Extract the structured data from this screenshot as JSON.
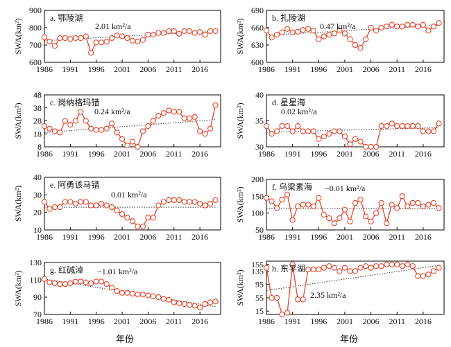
{
  "figure": {
    "x_axis_title": "年份",
    "line_color": "#e8452c",
    "trend_color": "#333333"
  },
  "chart_data": [
    {
      "type": "line",
      "panel_label": "a. 鄂陵湖",
      "trend_label": "2.01 km²/a",
      "ylabel": "SWA(km²)",
      "ylim": [
        600,
        900
      ],
      "yticks": [
        600,
        700,
        800,
        900
      ],
      "xlim": [
        1986,
        2020
      ],
      "xticks": [
        1986,
        1991,
        1996,
        2001,
        2006,
        2011,
        2016
      ],
      "trend": [
        [
          1986,
          725
        ],
        [
          2019,
          780
        ]
      ],
      "x": [
        1986,
        1987,
        1988,
        1989,
        1990,
        1991,
        1992,
        1993,
        1994,
        1995,
        1996,
        1997,
        1998,
        1999,
        2000,
        2001,
        2002,
        2003,
        2004,
        2005,
        2006,
        2007,
        2008,
        2009,
        2010,
        2011,
        2012,
        2013,
        2014,
        2015,
        2016,
        2017,
        2018,
        2019
      ],
      "values": [
        745,
        720,
        695,
        740,
        740,
        735,
        740,
        740,
        750,
        655,
        715,
        715,
        720,
        740,
        755,
        750,
        740,
        725,
        720,
        730,
        760,
        760,
        770,
        770,
        780,
        780,
        765,
        780,
        780,
        770,
        775,
        760,
        780,
        780
      ]
    },
    {
      "type": "line",
      "panel_label": "b. 扎陵湖",
      "trend_label": "0.47 km²/a",
      "ylabel": "SWA(km²)",
      "ylim": [
        600,
        690
      ],
      "yticks": [
        600,
        630,
        660,
        690
      ],
      "xlim": [
        1986,
        2020
      ],
      "xticks": [
        1986,
        1991,
        1996,
        2001,
        2006,
        2011,
        2016
      ],
      "trend": [
        [
          1986,
          647
        ],
        [
          2019,
          664
        ]
      ],
      "x": [
        1986,
        1987,
        1988,
        1989,
        1990,
        1991,
        1992,
        1993,
        1994,
        1995,
        1996,
        1997,
        1998,
        1999,
        2000,
        2001,
        2002,
        2003,
        2004,
        2005,
        2006,
        2007,
        2008,
        2009,
        2010,
        2011,
        2012,
        2013,
        2014,
        2015,
        2016,
        2017,
        2018,
        2019
      ],
      "values": [
        655,
        643,
        648,
        652,
        658,
        652,
        653,
        656,
        658,
        655,
        640,
        645,
        648,
        650,
        655,
        650,
        640,
        630,
        625,
        640,
        660,
        655,
        660,
        662,
        665,
        662,
        662,
        665,
        665,
        662,
        665,
        655,
        662,
        668
      ]
    },
    {
      "type": "line",
      "panel_label": "c. 岗纳格玛错",
      "trend_label": "0.24 km²/a",
      "ylabel": "SWA(km²)",
      "ylim": [
        8,
        48
      ],
      "yticks": [
        8,
        18,
        28,
        38,
        48
      ],
      "xlim": [
        1986,
        2020
      ],
      "xticks": [
        1986,
        1991,
        1996,
        2001,
        2006,
        2011,
        2016
      ],
      "trend": [
        [
          1986,
          19
        ],
        [
          2019,
          29
        ]
      ],
      "x": [
        1986,
        1987,
        1988,
        1989,
        1990,
        1991,
        1992,
        1993,
        1994,
        1995,
        1996,
        1997,
        1998,
        1999,
        2000,
        2001,
        2002,
        2003,
        2004,
        2005,
        2006,
        2007,
        2008,
        2009,
        2010,
        2011,
        2012,
        2013,
        2014,
        2015,
        2016,
        2017,
        2018,
        2019
      ],
      "values": [
        24,
        22,
        20,
        19,
        28,
        25,
        28,
        35,
        28,
        22,
        21,
        21,
        22,
        26,
        19,
        14,
        9,
        12,
        8,
        20,
        24,
        28,
        32,
        34,
        36,
        35,
        35,
        30,
        30,
        31,
        20,
        18,
        22,
        40
      ]
    },
    {
      "type": "line",
      "panel_label": "d. 星星海",
      "trend_label": "0.02 km²/a",
      "ylabel": "SWA(km²)",
      "ylim": [
        30,
        40
      ],
      "yticks": [
        30,
        35,
        40
      ],
      "xlim": [
        1986,
        2020
      ],
      "xticks": [
        1986,
        1991,
        1996,
        2001,
        2006,
        2011,
        2016
      ],
      "trend": [
        [
          1986,
          32.8
        ],
        [
          2019,
          33.7
        ]
      ],
      "x": [
        1986,
        1987,
        1988,
        1989,
        1990,
        1991,
        1992,
        1993,
        1994,
        1995,
        1996,
        1997,
        1998,
        1999,
        2000,
        2001,
        2002,
        2003,
        2004,
        2005,
        2006,
        2007,
        2008,
        2009,
        2010,
        2011,
        2012,
        2013,
        2014,
        2015,
        2016,
        2017,
        2018,
        2019
      ],
      "values": [
        34,
        32.5,
        33,
        34,
        34,
        33,
        34,
        33,
        33,
        33,
        31.5,
        32,
        32.5,
        33,
        33,
        32,
        30.5,
        31.5,
        31,
        30,
        30,
        30,
        34,
        34,
        34.5,
        34,
        34,
        34,
        34,
        34,
        33,
        33,
        33,
        34.5
      ]
    },
    {
      "type": "line",
      "panel_label": "e. 阿勇该马错",
      "trend_label": "0.01 km²/a",
      "ylabel": "SWA(km²)",
      "ylim": [
        10,
        40
      ],
      "yticks": [
        10,
        20,
        30,
        40
      ],
      "xlim": [
        1986,
        2020
      ],
      "xticks": [
        1986,
        1991,
        1996,
        2001,
        2006,
        2011,
        2016
      ],
      "trend": [
        [
          1986,
          23
        ],
        [
          2019,
          23
        ]
      ],
      "x": [
        1986,
        1987,
        1988,
        1989,
        1990,
        1991,
        1992,
        1993,
        1994,
        1995,
        1996,
        1997,
        1998,
        1999,
        2000,
        2001,
        2002,
        2003,
        2004,
        2005,
        2006,
        2007,
        2008,
        2009,
        2010,
        2011,
        2012,
        2013,
        2014,
        2015,
        2016,
        2017,
        2018,
        2019
      ],
      "values": [
        26,
        22,
        23,
        23,
        26,
        26,
        25,
        26,
        26,
        24,
        24,
        25,
        24,
        23,
        21,
        19,
        17,
        15,
        12,
        12,
        17,
        17,
        24,
        26,
        27,
        27,
        27,
        26,
        26,
        26,
        25,
        24,
        25,
        27
      ]
    },
    {
      "type": "line",
      "panel_label": "f. 乌梁素海",
      "trend_label": "−0.01 km²/a",
      "ylabel": "SWA(km²)",
      "ylim": [
        50,
        200
      ],
      "yticks": [
        50,
        100,
        150,
        200
      ],
      "xlim": [
        1986,
        2020
      ],
      "xticks": [
        1986,
        1991,
        1996,
        2001,
        2006,
        2011,
        2016
      ],
      "trend": [
        [
          1986,
          114
        ],
        [
          2019,
          113
        ]
      ],
      "x": [
        1986,
        1987,
        1988,
        1989,
        1990,
        1991,
        1992,
        1993,
        1994,
        1995,
        1996,
        1997,
        1998,
        1999,
        2000,
        2001,
        2002,
        2003,
        2004,
        2005,
        2006,
        2007,
        2008,
        2009,
        2010,
        2011,
        2012,
        2013,
        2014,
        2015,
        2016,
        2017,
        2018,
        2019
      ],
      "values": [
        145,
        135,
        115,
        140,
        155,
        80,
        120,
        125,
        125,
        120,
        145,
        95,
        85,
        70,
        85,
        110,
        75,
        130,
        140,
        90,
        75,
        100,
        130,
        70,
        125,
        115,
        150,
        120,
        130,
        130,
        120,
        125,
        130,
        115
      ]
    },
    {
      "type": "line",
      "panel_label": "g. 红碱淖",
      "trend_label": "−1.01 km²/a",
      "ylabel": "SWA(km²)",
      "ylim": [
        70,
        130
      ],
      "yticks": [
        70,
        90,
        110,
        130
      ],
      "xlim": [
        1986,
        2020
      ],
      "xticks": [
        1986,
        1991,
        1996,
        2001,
        2006,
        2011,
        2016
      ],
      "trend": [
        [
          1986,
          111
        ],
        [
          2019,
          79
        ]
      ],
      "x": [
        1986,
        1987,
        1988,
        1989,
        1990,
        1991,
        1992,
        1993,
        1994,
        1995,
        1996,
        1997,
        1998,
        1999,
        2000,
        2001,
        2002,
        2003,
        2004,
        2005,
        2006,
        2007,
        2008,
        2009,
        2010,
        2011,
        2012,
        2013,
        2014,
        2015,
        2016,
        2017,
        2018,
        2019
      ],
      "values": [
        111,
        107,
        106,
        105,
        105,
        106,
        108,
        108,
        107,
        106,
        108,
        108,
        105,
        101,
        97,
        95,
        95,
        94,
        93,
        93,
        92,
        91,
        90,
        88,
        87,
        84,
        83,
        82,
        81,
        80,
        78,
        82,
        84,
        85
      ]
    },
    {
      "type": "line",
      "panel_label": "h. 东平湖",
      "trend_label": "2.35 km²/a",
      "ylabel": "SWA(km²)",
      "ylim": [
        5,
        165
      ],
      "yticks": [
        15,
        55,
        95,
        135,
        155
      ],
      "xlim": [
        1986,
        2020
      ],
      "xticks": [
        1986,
        1991,
        1996,
        2001,
        2006,
        2011,
        2016
      ],
      "trend": [
        [
          1986,
          77
        ],
        [
          2019,
          152
        ]
      ],
      "x": [
        1986,
        1987,
        1988,
        1989,
        1990,
        1991,
        1992,
        1993,
        1994,
        1995,
        1996,
        1997,
        1998,
        1999,
        2000,
        2001,
        2002,
        2003,
        2004,
        2005,
        2006,
        2007,
        2008,
        2009,
        2010,
        2011,
        2012,
        2013,
        2014,
        2015,
        2016,
        2017,
        2018,
        2019
      ],
      "values": [
        145,
        55,
        55,
        5,
        10,
        155,
        50,
        50,
        140,
        140,
        140,
        145,
        150,
        145,
        135,
        145,
        135,
        135,
        145,
        150,
        145,
        150,
        150,
        155,
        155,
        155,
        150,
        155,
        150,
        120,
        120,
        125,
        135,
        145
      ]
    }
  ]
}
